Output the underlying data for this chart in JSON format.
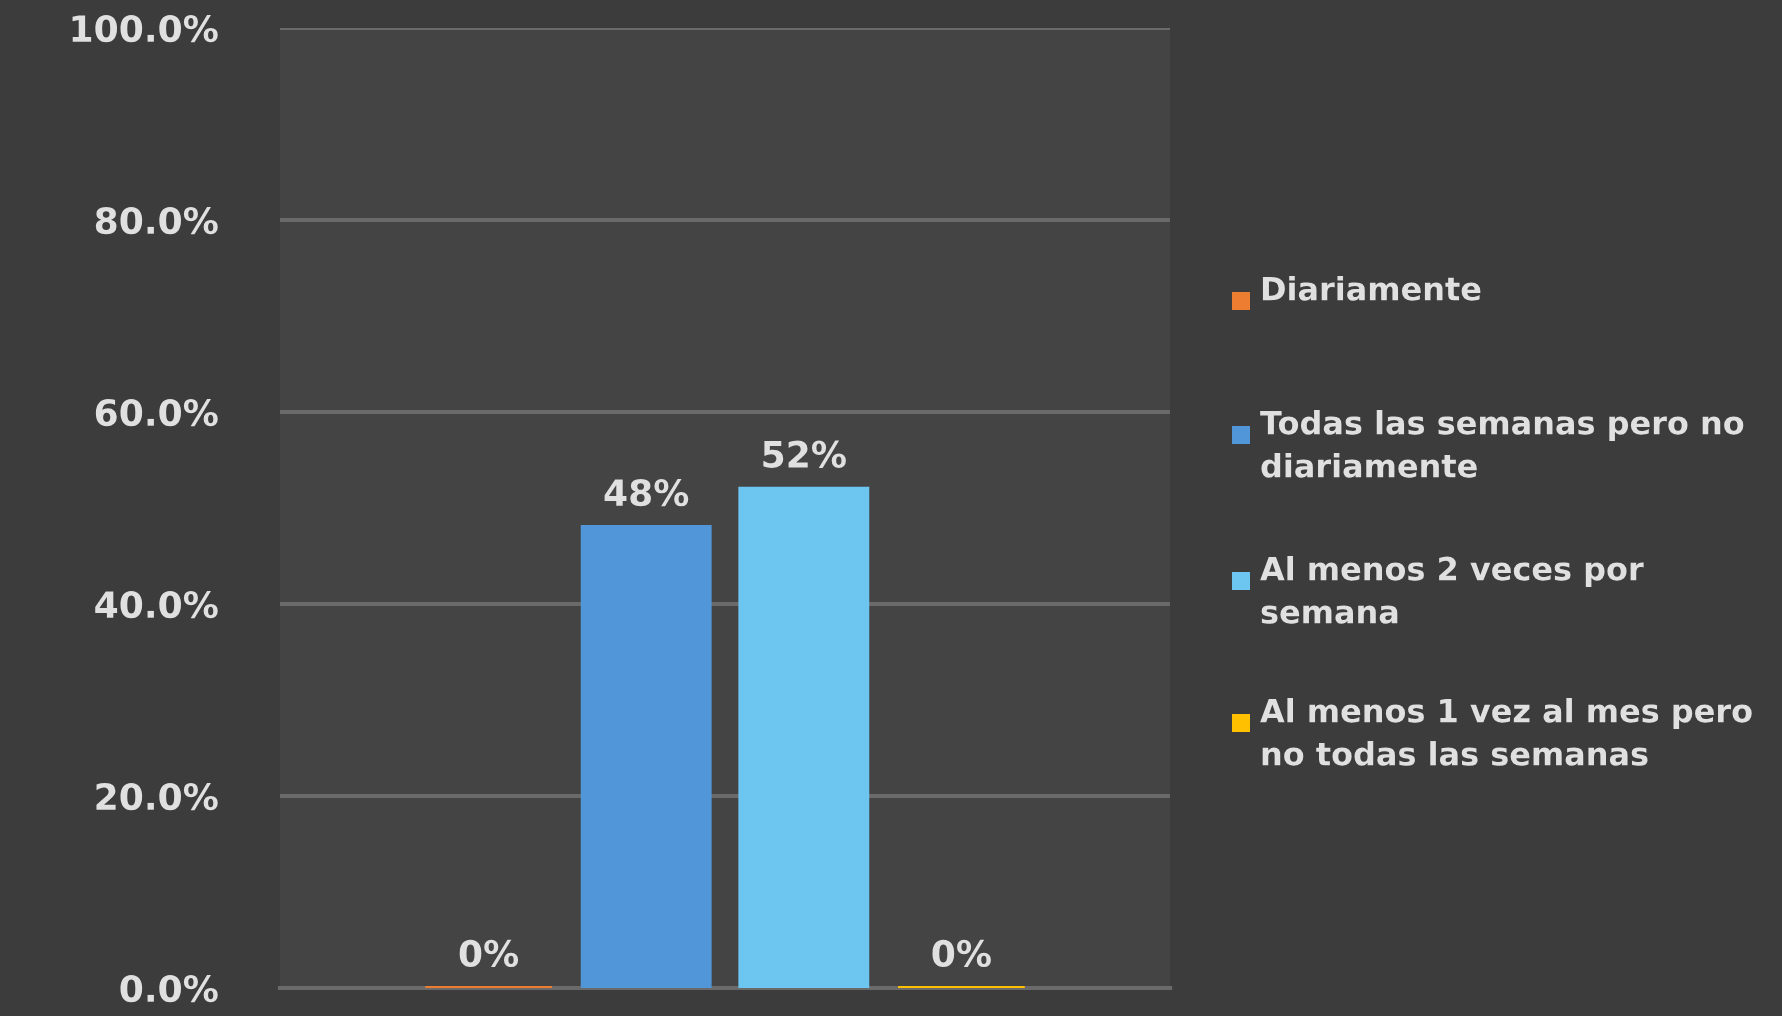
{
  "chart_data": {
    "type": "bar",
    "categories": [
      null
    ],
    "series": [
      {
        "name": "Diariamente",
        "color": "#ed7d31",
        "values": [
          0
        ],
        "value_labels": [
          "0%"
        ]
      },
      {
        "name": "Todas las semanas pero no diariamente",
        "color": "#5096d8",
        "values": [
          48
        ],
        "value_labels": [
          "48%"
        ]
      },
      {
        "name": "Al menos 2 veces por semana",
        "color": "#6cc6f0",
        "values": [
          52
        ],
        "value_labels": [
          "52%"
        ]
      },
      {
        "name": "Al menos 1 vez al mes pero no todas las semanas",
        "color": "#ffc000",
        "values": [
          0
        ],
        "value_labels": [
          "0%"
        ]
      }
    ],
    "ylim": [
      0,
      100
    ],
    "yticks": [
      {
        "value": 0,
        "label": "0.0%"
      },
      {
        "value": 20,
        "label": "20.0%"
      },
      {
        "value": 40,
        "label": "40.0%"
      },
      {
        "value": 60,
        "label": "60.0%"
      },
      {
        "value": 80,
        "label": "80.0%"
      },
      {
        "value": 100,
        "label": "100.0%"
      }
    ],
    "grid": "y",
    "legend": "right"
  }
}
